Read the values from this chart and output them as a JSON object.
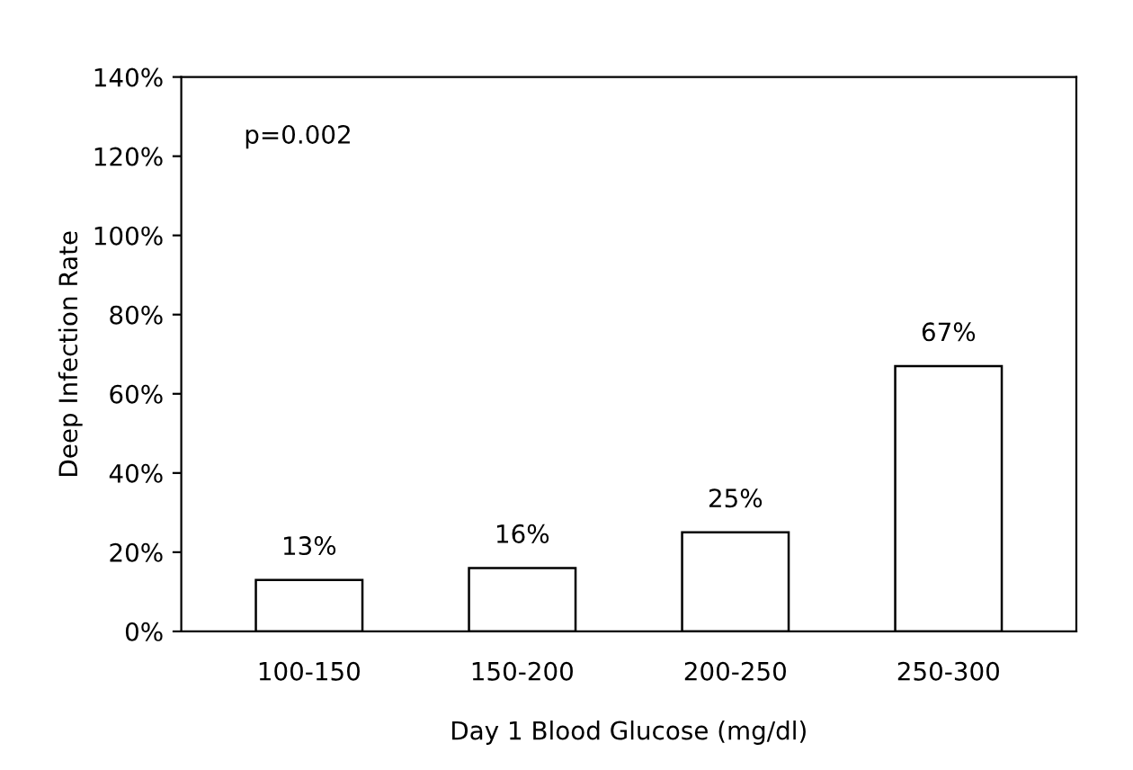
{
  "chart_data": {
    "type": "bar",
    "xlabel": "Day 1 Blood Glucose (mg/dl)",
    "ylabel": "Deep Infection Rate",
    "categories": [
      "100-150",
      "150-200",
      "200-250",
      "250-300"
    ],
    "values": [
      13,
      16,
      25,
      67
    ],
    "color": "#ffffff",
    "value_labels": [
      "13%",
      "16%",
      "25%",
      "67%"
    ],
    "ylim": [
      0,
      140
    ],
    "yticks": [
      {
        "value": 0,
        "label": "0%"
      },
      {
        "value": 20,
        "label": "20%"
      },
      {
        "value": 40,
        "label": "40%"
      },
      {
        "value": 60,
        "label": "60%"
      },
      {
        "value": 80,
        "label": "80%"
      },
      {
        "value": 100,
        "label": "100%"
      },
      {
        "value": 120,
        "label": "120%"
      },
      {
        "value": 140,
        "label": "140%"
      }
    ],
    "annotations": [
      "p=0.002"
    ],
    "grid": false,
    "legend": false
  }
}
